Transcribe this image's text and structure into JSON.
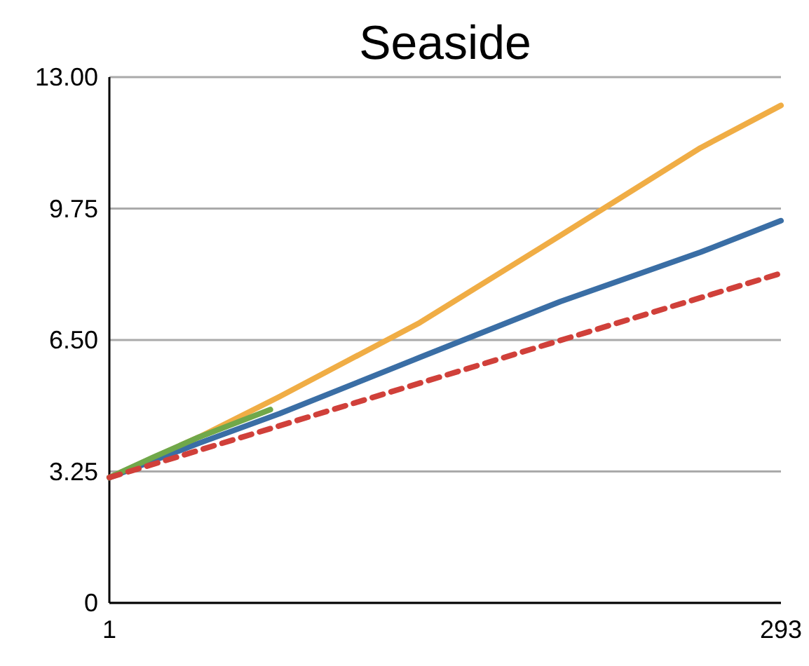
{
  "chart_data": {
    "type": "line",
    "title": "Seaside",
    "xlim": [
      1,
      293
    ],
    "xticks": [
      1,
      293
    ],
    "ylim": [
      0,
      13
    ],
    "yticks": [
      0,
      3.25,
      {
        "value": 6.5,
        "label": "6.50"
      },
      9.75,
      {
        "value": 13,
        "label": "13.00"
      }
    ],
    "grid": "y",
    "marker": "none",
    "series": [
      {
        "color": "#f0ad45",
        "x": [
          1,
          40,
          75,
          136,
          197,
          258,
          293
        ],
        "values": [
          3.1,
          4.1,
          5.1,
          6.93,
          9.08,
          11.25,
          12.3
        ]
      },
      {
        "color": "#3a6ea5",
        "x": [
          1,
          40,
          75,
          136,
          197,
          258,
          293
        ],
        "values": [
          3.1,
          3.95,
          4.68,
          6.07,
          7.45,
          8.67,
          9.45
        ]
      },
      {
        "color": "#70a84a",
        "x": [
          1,
          20,
          40,
          71
        ],
        "values": [
          3.1,
          3.6,
          4.1,
          4.78
        ]
      },
      {
        "color": "#d0403a",
        "x": [
          1,
          293
        ],
        "values": [
          3.1,
          8.15
        ],
        "line_style": "dashed"
      }
    ]
  }
}
